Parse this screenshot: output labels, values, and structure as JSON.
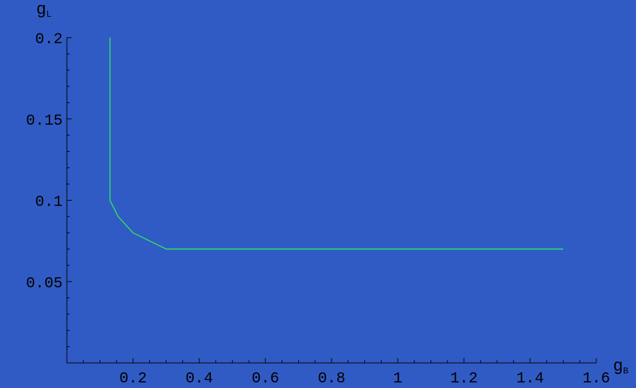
{
  "chart_data": {
    "type": "line",
    "xlabel": "g",
    "xlabel_sub": "B",
    "ylabel": "g",
    "ylabel_sub": "L",
    "xlim": [
      0.0,
      1.6
    ],
    "ylim": [
      0.0,
      0.2
    ],
    "x_ticks": [
      {
        "value": 0.2,
        "label": "0.2"
      },
      {
        "value": 0.4,
        "label": "0.4"
      },
      {
        "value": 0.6,
        "label": "0.6"
      },
      {
        "value": 0.8,
        "label": "0.8"
      },
      {
        "value": 1.0,
        "label": "1"
      },
      {
        "value": 1.2,
        "label": "1.2"
      },
      {
        "value": 1.4,
        "label": "1.4"
      },
      {
        "value": 1.6,
        "label": "1.6"
      }
    ],
    "y_ticks": [
      {
        "value": 0.05,
        "label": "0.05"
      },
      {
        "value": 0.1,
        "label": "0.1"
      },
      {
        "value": 0.15,
        "label": "0.15"
      },
      {
        "value": 0.2,
        "label": "0.2"
      }
    ],
    "x_minor_step": 0.05,
    "y_minor_step": 0.01,
    "grid": false,
    "series": [
      {
        "color": "#2ee85a",
        "points": [
          [
            0.13,
            0.2
          ],
          [
            0.13,
            0.1
          ],
          [
            0.155,
            0.09
          ],
          [
            0.2,
            0.08
          ],
          [
            0.3,
            0.07
          ],
          [
            0.4,
            0.07
          ],
          [
            0.6,
            0.07
          ],
          [
            0.8,
            0.07
          ],
          [
            1.0,
            0.07
          ],
          [
            1.2,
            0.07
          ],
          [
            1.4,
            0.07
          ],
          [
            1.5,
            0.07
          ]
        ]
      }
    ]
  }
}
